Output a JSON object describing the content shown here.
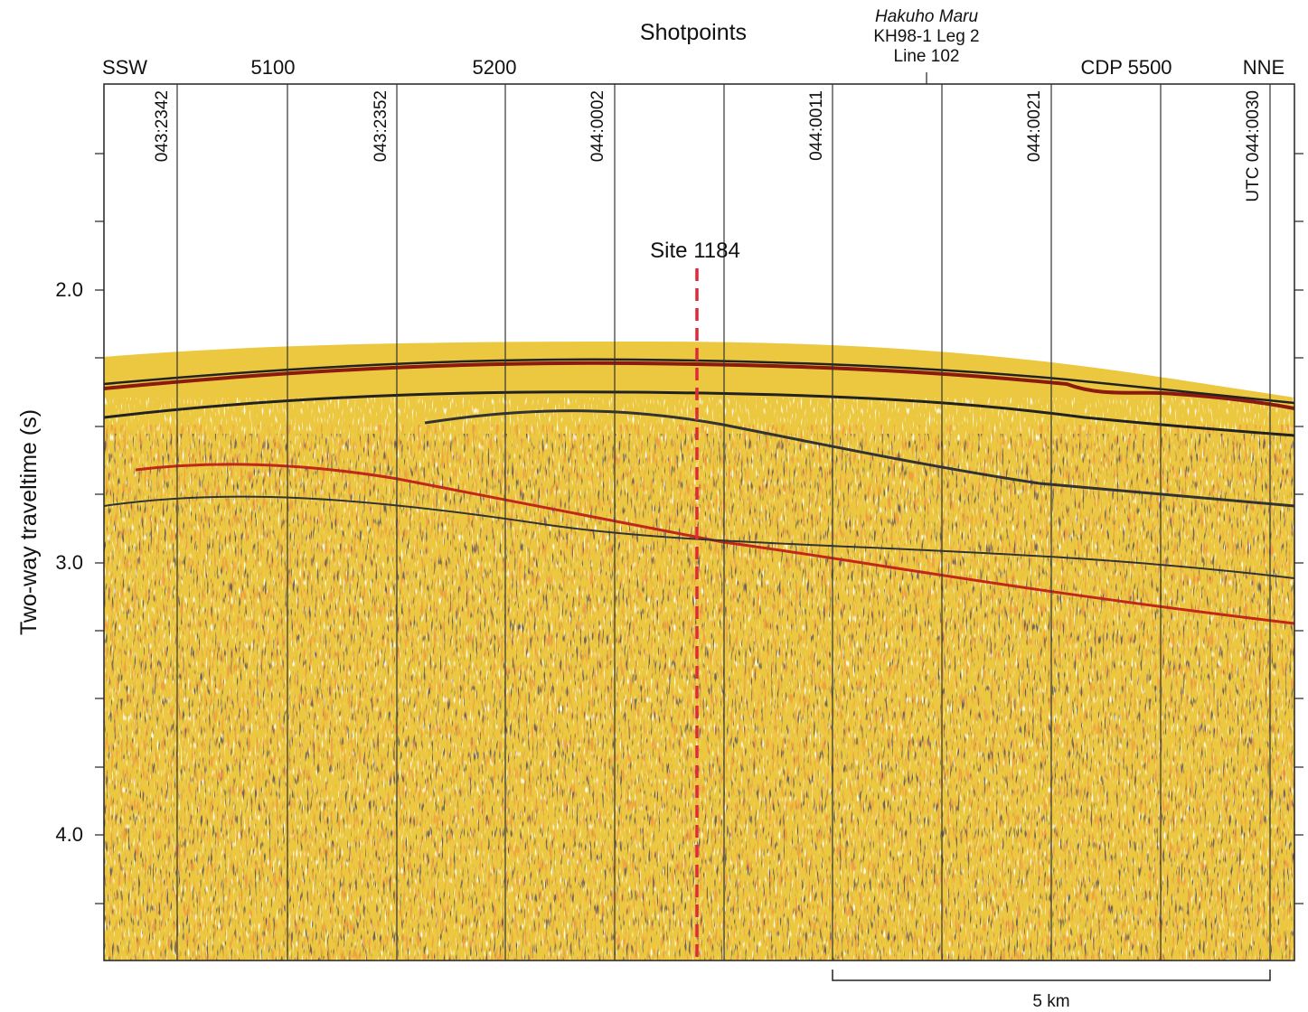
{
  "header": {
    "title": "Shotpoints",
    "vessel": "Hakuho Maru",
    "cruise": "KH98-1 Leg 2",
    "line": "Line 102"
  },
  "top_labels": [
    "SSW",
    "5100",
    "5200",
    "CDP 5500",
    "NNE"
  ],
  "time_labels": [
    "043:2342",
    "043:2352",
    "044:0002",
    "044:0011",
    "044:0021",
    "UTC 044:0030"
  ],
  "site": "Site 1184",
  "y_axis": {
    "label": "Two-way traveltime (s)",
    "ticks": [
      "2.0",
      "3.0",
      "4.0"
    ]
  },
  "scale_bar": "5 km"
}
